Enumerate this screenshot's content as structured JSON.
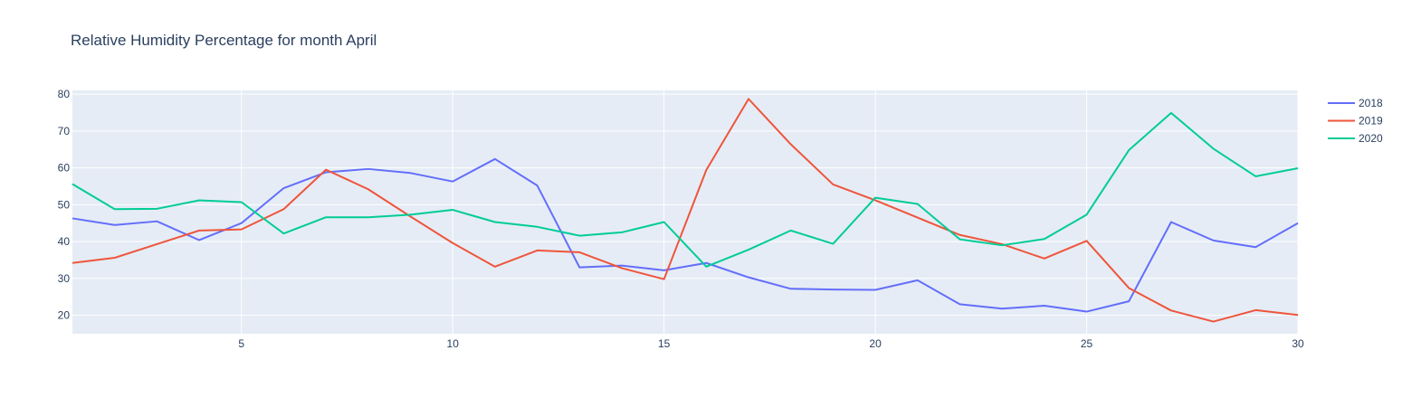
{
  "chart_data": {
    "type": "line",
    "title": "Relative Humidity Percentage for month April",
    "xlabel": "",
    "ylabel": "",
    "xlim": [
      1,
      30
    ],
    "ylim": [
      15,
      81
    ],
    "x_ticks": [
      5,
      10,
      15,
      20,
      25,
      30
    ],
    "y_ticks": [
      20,
      30,
      40,
      50,
      60,
      70,
      80
    ],
    "grid": true,
    "legend_position": "right",
    "background_color": "#e5ecf6",
    "x": [
      1,
      2,
      3,
      4,
      5,
      6,
      7,
      8,
      9,
      10,
      11,
      12,
      13,
      14,
      15,
      16,
      17,
      18,
      19,
      20,
      21,
      22,
      23,
      24,
      25,
      26,
      27,
      28,
      29,
      30
    ],
    "series": [
      {
        "name": "2018",
        "color": "#636efa",
        "values": [
          46.3,
          44.5,
          45.5,
          40.4,
          45.0,
          54.5,
          58.8,
          59.7,
          58.6,
          56.3,
          62.4,
          55.2,
          33.0,
          33.5,
          32.2,
          34.2,
          30.3,
          27.2,
          27.0,
          26.9,
          29.5,
          23.0,
          21.8,
          22.6,
          21.0,
          23.8,
          45.3,
          40.3,
          38.5,
          45.0
        ]
      },
      {
        "name": "2019",
        "color": "#ef553b",
        "values": [
          34.2,
          35.6,
          39.3,
          43.0,
          43.3,
          48.8,
          59.5,
          54.2,
          46.8,
          39.6,
          33.2,
          37.6,
          37.1,
          32.8,
          29.8,
          59.4,
          78.7,
          66.4,
          55.5,
          51.2,
          46.5,
          41.8,
          39.3,
          35.4,
          40.2,
          27.4,
          21.3,
          18.3,
          21.4,
          20.1
        ]
      },
      {
        "name": "2020",
        "color": "#00cc96",
        "values": [
          55.6,
          48.8,
          48.9,
          51.2,
          50.7,
          42.2,
          46.6,
          46.6,
          47.3,
          48.6,
          45.3,
          44.0,
          41.6,
          42.5,
          45.3,
          33.2,
          37.8,
          43.0,
          39.4,
          51.9,
          50.2,
          40.6,
          39.0,
          40.7,
          47.3,
          64.8,
          74.9,
          65.2,
          57.7,
          59.9
        ]
      }
    ]
  }
}
